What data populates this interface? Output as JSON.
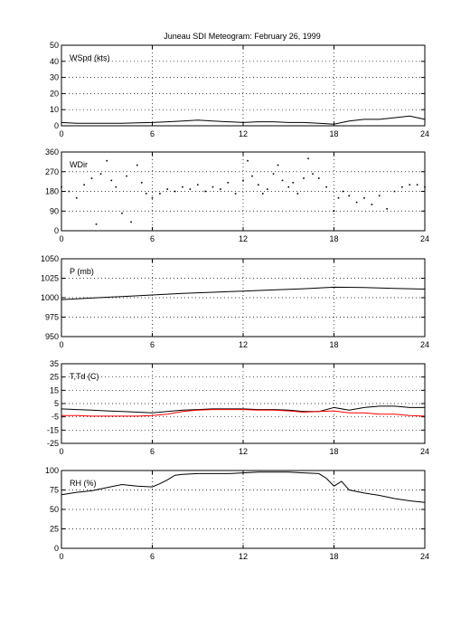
{
  "title": "Juneau SDI Meteogram:  February 26, 1999",
  "chart_data": [
    {
      "type": "line",
      "panel_label": "WSpd (kts)",
      "xlim": [
        0,
        24
      ],
      "ylim": [
        0,
        50
      ],
      "xticks": [
        0,
        6,
        12,
        18,
        24
      ],
      "yticks": [
        0,
        10,
        20,
        30,
        40,
        50
      ],
      "grid": true,
      "series": [
        {
          "color": "#000000",
          "style": "line",
          "x": [
            0,
            1,
            2,
            3,
            4,
            5,
            6,
            7,
            8,
            9,
            10,
            11,
            12,
            13,
            14,
            15,
            16,
            17,
            18,
            19,
            20,
            21,
            22,
            23,
            24
          ],
          "y": [
            2,
            1.5,
            1.5,
            1.5,
            1.5,
            1.8,
            2,
            2.5,
            3,
            3.5,
            3,
            2.5,
            2,
            2.5,
            2.5,
            2,
            2,
            1.5,
            1,
            3,
            4,
            4,
            5,
            6,
            4
          ]
        }
      ]
    },
    {
      "type": "scatter",
      "panel_label": "WDir",
      "xlim": [
        0,
        24
      ],
      "ylim": [
        0,
        360
      ],
      "xticks": [
        0,
        6,
        12,
        18,
        24
      ],
      "yticks": [
        0,
        90,
        180,
        270,
        360
      ],
      "grid": true,
      "series": [
        {
          "color": "#000000",
          "style": "dots",
          "x": [
            0,
            0.5,
            1,
            1.5,
            2,
            2.3,
            2.6,
            3,
            3.3,
            3.6,
            4,
            4.3,
            4.6,
            5,
            5.3,
            5.6,
            6,
            6.5,
            7,
            7.5,
            8,
            8.5,
            9,
            9.5,
            10,
            10.5,
            11,
            11.5,
            12,
            12.3,
            12.6,
            13,
            13.3,
            13.6,
            14,
            14.3,
            14.6,
            15,
            15.3,
            15.6,
            16,
            16.3,
            16.6,
            17,
            17.5,
            18,
            18.3,
            18.6,
            19,
            19.5,
            20,
            20.5,
            21,
            21.5,
            22,
            22.5,
            23,
            23.5,
            24
          ],
          "y": [
            200,
            180,
            150,
            210,
            240,
            30,
            260,
            320,
            230,
            200,
            80,
            250,
            40,
            300,
            220,
            170,
            150,
            170,
            190,
            180,
            200,
            190,
            210,
            180,
            200,
            190,
            220,
            170,
            230,
            320,
            250,
            210,
            170,
            190,
            260,
            300,
            230,
            200,
            220,
            170,
            240,
            330,
            260,
            240,
            200,
            90,
            150,
            180,
            160,
            130,
            150,
            120,
            160,
            100,
            180,
            200,
            210,
            210,
            200
          ]
        }
      ]
    },
    {
      "type": "line",
      "panel_label": "P (mb)",
      "xlim": [
        0,
        24
      ],
      "ylim": [
        950,
        1050
      ],
      "xticks": [
        0,
        6,
        12,
        18,
        24
      ],
      "yticks": [
        950,
        975,
        1000,
        1025,
        1050
      ],
      "grid": true,
      "series": [
        {
          "color": "#000000",
          "style": "line",
          "x": [
            0,
            2,
            4,
            6,
            8,
            10,
            12,
            14,
            16,
            18,
            20,
            22,
            24
          ],
          "y": [
            997.5,
            999.5,
            1001.5,
            1003.5,
            1005.5,
            1007,
            1008.5,
            1010,
            1011.5,
            1013.5,
            1013,
            1012,
            1011
          ]
        }
      ]
    },
    {
      "type": "line",
      "panel_label": "T,Td (C)",
      "xlim": [
        0,
        24
      ],
      "ylim": [
        -25,
        35
      ],
      "xticks": [
        0,
        6,
        12,
        18,
        24
      ],
      "yticks": [
        -25,
        -15,
        -5,
        5,
        15,
        25,
        35
      ],
      "grid": true,
      "series": [
        {
          "color": "#000000",
          "style": "line",
          "x": [
            0,
            1,
            2,
            3,
            4,
            5,
            6,
            7,
            8,
            9,
            10,
            11,
            12,
            13,
            14,
            15,
            16,
            17,
            18,
            19,
            20,
            21,
            22,
            23,
            24
          ],
          "y": [
            1,
            0.5,
            0,
            -0.5,
            -1,
            -1.5,
            -2,
            -1,
            0,
            0.5,
            1,
            1,
            1,
            0.5,
            0.5,
            0,
            -1,
            -1,
            2,
            0,
            2,
            3,
            3,
            2,
            2
          ]
        },
        {
          "color": "#ff0000",
          "style": "line",
          "x": [
            0,
            1,
            2,
            3,
            4,
            5,
            6,
            7,
            8,
            9,
            10,
            11,
            12,
            13,
            14,
            15,
            16,
            17,
            18,
            19,
            20,
            21,
            22,
            23,
            24
          ],
          "y": [
            -4,
            -4,
            -4.5,
            -4.5,
            -4.5,
            -4.5,
            -4,
            -3,
            -1,
            0,
            0.5,
            0.5,
            0.5,
            0,
            0,
            -0.5,
            -1.5,
            -1,
            -0.5,
            -2,
            -2,
            -3,
            -3,
            -4,
            -4.5
          ]
        }
      ]
    },
    {
      "type": "line",
      "panel_label": "RH (%)",
      "xlim": [
        0,
        24
      ],
      "ylim": [
        0,
        100
      ],
      "xticks": [
        0,
        6,
        12,
        18,
        24
      ],
      "yticks": [
        0,
        25,
        50,
        75,
        100
      ],
      "grid": true,
      "series": [
        {
          "color": "#000000",
          "style": "line",
          "x": [
            0,
            1,
            2,
            3,
            4,
            5,
            6,
            6.5,
            7,
            7.5,
            8,
            9,
            10,
            11,
            12,
            13,
            14,
            15,
            16,
            17,
            17.5,
            18,
            18.5,
            19,
            20,
            21,
            22,
            23,
            24
          ],
          "y": [
            69,
            72,
            74,
            78,
            82,
            80,
            79,
            83,
            88,
            94,
            95,
            96,
            96,
            96,
            97,
            98,
            98,
            98,
            97,
            96,
            90,
            80,
            86,
            75,
            71,
            68,
            64,
            61,
            59
          ]
        }
      ]
    }
  ]
}
